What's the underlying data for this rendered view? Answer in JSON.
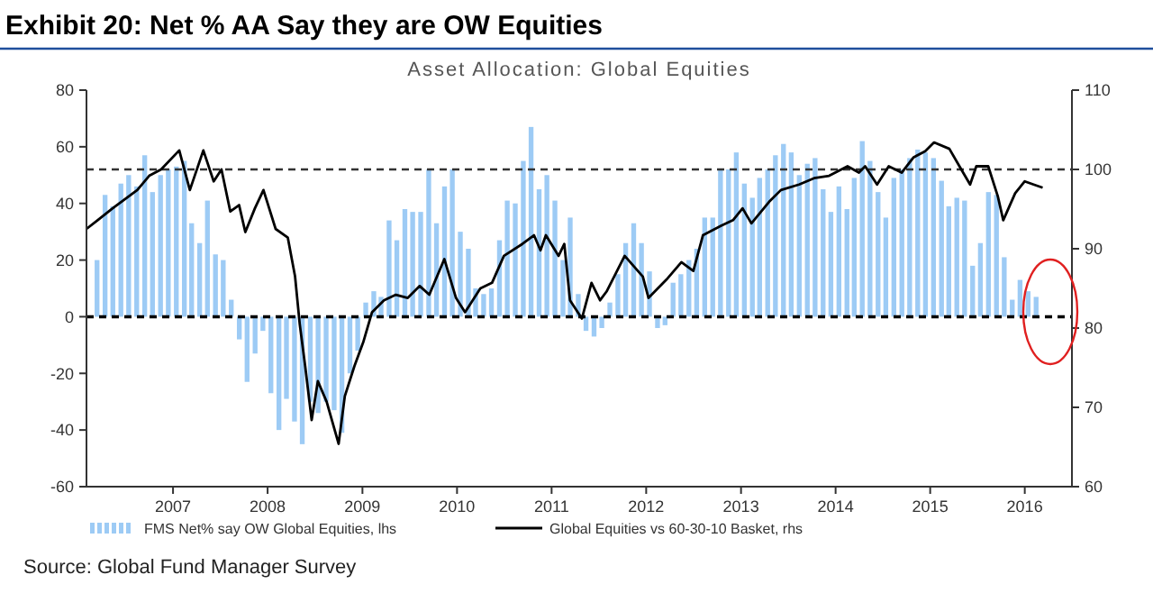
{
  "chart_data": {
    "type": "bar",
    "title": "Exhibit 20: Net % AA Say they are OW Equities",
    "subtitle": "Asset Allocation: Global Equities",
    "annotations": [
      "Source: Global Fund Manager Survey"
    ],
    "x": [
      "2006-03",
      "2006-04",
      "2006-05",
      "2006-06",
      "2006-07",
      "2006-08",
      "2006-09",
      "2006-10",
      "2006-11",
      "2006-12",
      "2007-01",
      "2007-02",
      "2007-03",
      "2007-04",
      "2007-05",
      "2007-06",
      "2007-07",
      "2007-08",
      "2007-09",
      "2007-10",
      "2007-11",
      "2007-12",
      "2008-01",
      "2008-02",
      "2008-03",
      "2008-04",
      "2008-05",
      "2008-06",
      "2008-07",
      "2008-08",
      "2008-09",
      "2008-10",
      "2008-11",
      "2008-12",
      "2009-01",
      "2009-02",
      "2009-03",
      "2009-04",
      "2009-05",
      "2009-06",
      "2009-07",
      "2009-08",
      "2009-09",
      "2009-10",
      "2009-11",
      "2009-12",
      "2010-01",
      "2010-02",
      "2010-03",
      "2010-04",
      "2010-05",
      "2010-06",
      "2010-07",
      "2010-08",
      "2010-09",
      "2010-10",
      "2010-11",
      "2010-12",
      "2011-01",
      "2011-02",
      "2011-03",
      "2011-04",
      "2011-05",
      "2011-06",
      "2011-07",
      "2011-08",
      "2011-09",
      "2011-10",
      "2011-11",
      "2011-12",
      "2012-01",
      "2012-02",
      "2012-03",
      "2012-04",
      "2012-05",
      "2012-06",
      "2012-07",
      "2012-08",
      "2012-09",
      "2012-10",
      "2012-11",
      "2012-12",
      "2013-01",
      "2013-02",
      "2013-03",
      "2013-04",
      "2013-05",
      "2013-06",
      "2013-07",
      "2013-08",
      "2013-09",
      "2013-10",
      "2013-11",
      "2013-12",
      "2014-01",
      "2014-02",
      "2014-03",
      "2014-04",
      "2014-05",
      "2014-06",
      "2014-07",
      "2014-08",
      "2014-09",
      "2014-10",
      "2014-11",
      "2014-12",
      "2015-01",
      "2015-02",
      "2015-03",
      "2015-04",
      "2015-05",
      "2015-06",
      "2015-07",
      "2015-08",
      "2015-09",
      "2015-10",
      "2015-11",
      "2015-12",
      "2016-01",
      "2016-02"
    ],
    "series": [
      {
        "name": "FMS Net% say OW Global Equities, lhs",
        "color": "#9dcbf5",
        "values": [
          20,
          43,
          39,
          47,
          50,
          46,
          57,
          44,
          50,
          52,
          53,
          55,
          33,
          26,
          41,
          22,
          20,
          6,
          -8,
          -23,
          -13,
          -5,
          -27,
          -40,
          -29,
          -37,
          -45,
          -30,
          -34,
          -30,
          -33,
          -41,
          -20,
          -12,
          5,
          9,
          7,
          34,
          27,
          38,
          37,
          37,
          52,
          33,
          46,
          52,
          30,
          24,
          10,
          8,
          10,
          27,
          41,
          40,
          55,
          67,
          45,
          50,
          41,
          20,
          35,
          8,
          -5,
          -7,
          -4,
          5,
          15,
          26,
          33,
          26,
          16,
          -4,
          -3,
          12,
          15,
          20,
          24,
          35,
          35,
          52,
          52,
          58,
          47,
          42,
          49,
          52,
          57,
          61,
          58,
          50,
          54,
          56,
          45,
          37,
          46,
          38,
          49,
          62,
          55,
          44,
          35,
          49,
          52,
          56,
          59,
          58,
          56,
          48,
          39,
          42,
          41,
          18,
          26,
          44,
          43,
          21,
          6,
          13,
          9,
          7
        ]
      },
      {
        "name": "Global Equities vs 60-30-10 Basket, rhs",
        "type": "line",
        "axis": "y2",
        "color": "#000000",
        "x": [
          "2006-02-01",
          "2006-03-16",
          "2006-05-13",
          "2006-08-16",
          "2006-10-01",
          "2006-11-16",
          "2007-01-25",
          "2007-03-07",
          "2007-04-28",
          "2007-06-07",
          "2007-07-07",
          "2007-08-10",
          "2007-09-13",
          "2007-10-07",
          "2007-11-13",
          "2007-12-16",
          "2008-02-01",
          "2008-03-19",
          "2008-04-16",
          "2008-05-04",
          "2008-05-25",
          "2008-06-19",
          "2008-07-13",
          "2008-08-16",
          "2008-10-01",
          "2008-10-25",
          "2008-12-01",
          "2009-01-04",
          "2009-02-07",
          "2009-03-25",
          "2009-05-10",
          "2009-06-25",
          "2009-08-10",
          "2009-09-16",
          "2009-11-13",
          "2009-12-28",
          "2010-02-01",
          "2010-04-01",
          "2010-05-16",
          "2010-07-01",
          "2010-09-10",
          "2010-10-25",
          "2010-11-19",
          "2010-12-10",
          "2011-01-28",
          "2011-02-19",
          "2011-03-13",
          "2011-04-28",
          "2011-06-04",
          "2011-07-07",
          "2011-08-01",
          "2011-10-10",
          "2011-12-19",
          "2012-01-10",
          "2012-03-19",
          "2012-05-16",
          "2012-07-01",
          "2012-08-07",
          "2012-10-16",
          "2012-12-01",
          "2013-01-07",
          "2013-02-10",
          "2013-04-19",
          "2013-06-04",
          "2013-08-13",
          "2013-10-10",
          "2013-12-07",
          "2014-02-16",
          "2014-04-01",
          "2014-04-25",
          "2014-06-10",
          "2014-07-25",
          "2014-09-13",
          "2014-10-28",
          "2014-12-13",
          "2015-01-16",
          "2015-03-16",
          "2015-05-01",
          "2015-06-04",
          "2015-06-28",
          "2015-08-13",
          "2015-09-19",
          "2015-10-10",
          "2015-11-25",
          "2016-01-01",
          "2016-02-04",
          "2016-03-10"
        ],
        "values": [
          92.5,
          93.6,
          95.1,
          97.4,
          99.2,
          100,
          102.4,
          97.4,
          102.4,
          98.5,
          100,
          94.7,
          95.5,
          92.1,
          95.1,
          97.4,
          92.5,
          91.4,
          86.5,
          80.5,
          75.2,
          68.4,
          73.3,
          70.7,
          65.4,
          71.4,
          75.2,
          78.2,
          82,
          83.5,
          84.2,
          83.8,
          85.3,
          84.2,
          88.7,
          83.8,
          82,
          85,
          85.7,
          89.1,
          90.6,
          91.7,
          89.8,
          91.7,
          89.1,
          90.6,
          83.5,
          81.2,
          85.7,
          83.5,
          84.6,
          89.1,
          86.5,
          83.8,
          86.1,
          88.3,
          87.2,
          91.7,
          92.9,
          93.6,
          95.1,
          93.2,
          95.9,
          97.4,
          98.1,
          98.9,
          99.2,
          100.4,
          99.6,
          100.4,
          98.1,
          100.4,
          99.6,
          101.5,
          102.3,
          103.4,
          102.6,
          100,
          98.1,
          100.4,
          100.4,
          96.6,
          93.6,
          97,
          98.5,
          98.1,
          97.7
        ]
      }
    ],
    "xlim": [
      "2006-02",
      "2016-07"
    ],
    "xticks": [
      {
        "value": "2007-01",
        "label": "2007"
      },
      {
        "value": "2008-01",
        "label": "2008"
      },
      {
        "value": "2009-01",
        "label": "2009"
      },
      {
        "value": "2010-01",
        "label": "2010"
      },
      {
        "value": "2011-01",
        "label": "2011"
      },
      {
        "value": "2012-01",
        "label": "2012"
      },
      {
        "value": "2013-01",
        "label": "2013"
      },
      {
        "value": "2014-01",
        "label": "2014"
      },
      {
        "value": "2015-01",
        "label": "2015"
      },
      {
        "value": "2016-01",
        "label": "2016"
      }
    ],
    "ylim": [
      -60,
      80
    ],
    "yticks": [
      -60,
      -40,
      -20,
      0,
      20,
      40,
      60,
      80
    ],
    "y2lim": [
      60,
      110
    ],
    "y2ticks": [
      60,
      70,
      80,
      90,
      100,
      110
    ],
    "ref_lines": [
      {
        "axis": "y",
        "value": 0,
        "color": "#000000",
        "line_style": "dashed"
      },
      {
        "axis": "y2",
        "value": 100,
        "color": "#333333",
        "line_style": "dashed"
      }
    ],
    "legend": "bottom"
  }
}
